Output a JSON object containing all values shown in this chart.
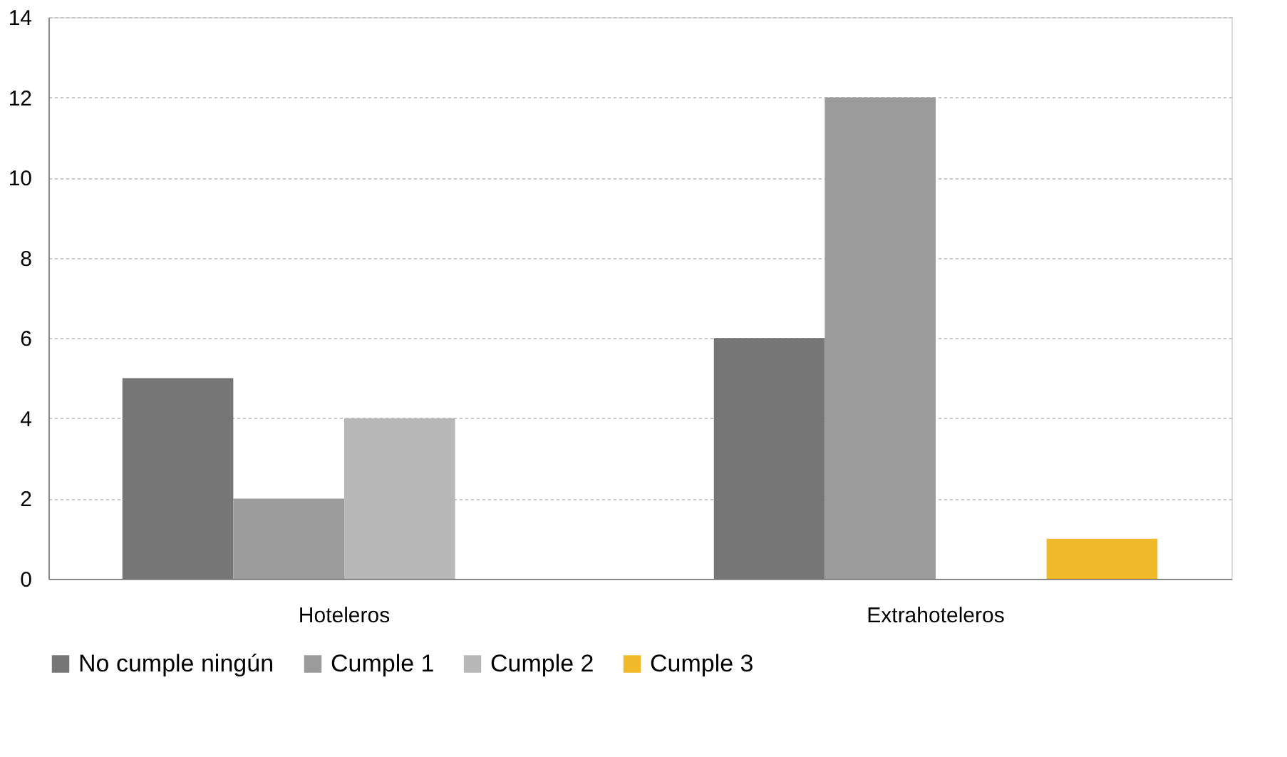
{
  "chart_data": {
    "type": "bar",
    "categories": [
      "Hoteleros",
      "Extrahoteleros"
    ],
    "series": [
      {
        "name": "No cumple ningún",
        "color": "#767676",
        "values": [
          5,
          6
        ]
      },
      {
        "name": "Cumple 1",
        "color": "#9b9b9b",
        "values": [
          2,
          12
        ]
      },
      {
        "name": "Cumple 2",
        "color": "#b8b8b8",
        "values": [
          4,
          0
        ]
      },
      {
        "name": "Cumple 3",
        "color": "#f0b929",
        "values": [
          0,
          1
        ]
      }
    ],
    "ylim": [
      0,
      14
    ],
    "yticks": [
      0,
      2,
      4,
      6,
      8,
      10,
      12,
      14
    ],
    "grid": "y",
    "legend": "bottom"
  }
}
